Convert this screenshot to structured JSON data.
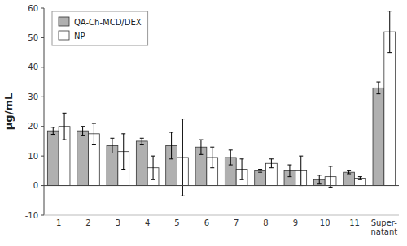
{
  "chart_data": {
    "type": "bar",
    "categories": [
      "1",
      "2",
      "3",
      "4",
      "5",
      "6",
      "7",
      "8",
      "9",
      "10",
      "11",
      "Super-\nnatant"
    ],
    "series": [
      {
        "name": "QA-Ch-MCD/DEX",
        "color": "#b0b0b0",
        "values": [
          18.5,
          18.5,
          13.5,
          15.0,
          13.5,
          13.0,
          9.5,
          5.0,
          5.0,
          2.0,
          4.5,
          33.0
        ],
        "errors": [
          1.2,
          1.5,
          2.5,
          1.0,
          4.5,
          2.5,
          2.5,
          0.5,
          2.0,
          1.5,
          0.5,
          2.0
        ]
      },
      {
        "name": "NP",
        "color": "#ffffff",
        "values": [
          20.0,
          17.5,
          11.5,
          6.0,
          9.5,
          9.5,
          5.5,
          7.5,
          5.0,
          3.0,
          2.5,
          52.0
        ],
        "errors": [
          4.5,
          3.5,
          6.0,
          4.0,
          13.0,
          3.5,
          3.5,
          1.5,
          5.0,
          3.5,
          0.5,
          7.0
        ]
      }
    ],
    "ylabel": "µg/mL",
    "ylim": [
      -10,
      60
    ],
    "yticks": [
      -10,
      0,
      10,
      20,
      30,
      40,
      50,
      60
    ],
    "legend": "upper left"
  }
}
